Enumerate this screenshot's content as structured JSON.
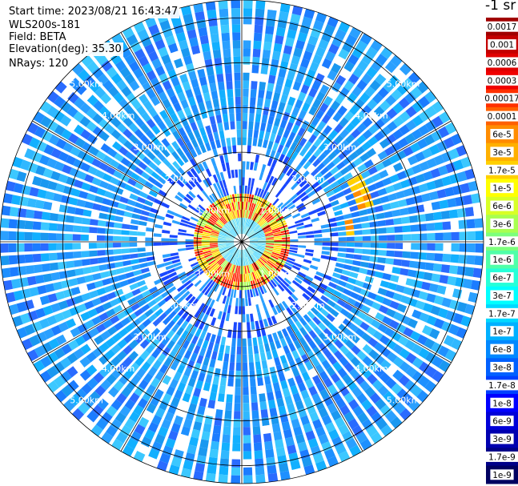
{
  "header": {
    "start_time": "Start time: 2023/08/21 16:43:47",
    "instrument": "WLS200s-181",
    "field": "Field: BETA",
    "elevation": "Elevation(deg): 35.30",
    "nrays": "NRays: 120"
  },
  "colorbar": {
    "units": "-1 sr",
    "labels": [
      "0.0017",
      "0.001",
      "0.0006",
      "0.0003",
      "0.00017",
      "0.0001",
      "6e-5",
      "3e-5",
      "1.7e-5",
      "1e-5",
      "6e-6",
      "3e-6",
      "1.7e-6",
      "1e-6",
      "6e-7",
      "3e-7",
      "1.7e-7",
      "1e-7",
      "6e-8",
      "3e-8",
      "1.7e-8",
      "1e-8",
      "6e-9",
      "3e-9",
      "1.7e-9",
      "1e-9"
    ],
    "colors": [
      "#a00000",
      "#c40000",
      "#e00000",
      "#f00000",
      "#ff3000",
      "#ff6000",
      "#ff8c00",
      "#ffb000",
      "#ffd000",
      "#ffff00",
      "#d8ff26",
      "#a8ff50",
      "#7cff7c",
      "#50ffa8",
      "#26ffd8",
      "#00ffff",
      "#00d8ff",
      "#00b0ff",
      "#0088ff",
      "#0060ff",
      "#0040ff",
      "#0000ff",
      "#0000d8",
      "#0000b0",
      "#000088",
      "#000060"
    ]
  },
  "chart_data": {
    "type": "heatmap",
    "subtype": "polar-ppi",
    "field": "BETA",
    "nrays": 120,
    "max_range_km": 5.4,
    "range_rings_km": [
      1.0,
      2.0,
      3.0,
      4.0,
      5.0
    ],
    "ring_labels": [
      "1.00km",
      "2.00km",
      "3.00km",
      "4.00km",
      "5.00km"
    ],
    "background_level": "1e-8 to 1e-7",
    "features": [
      {
        "name": "near-range ring",
        "range_km": [
          0.6,
          1.0
        ],
        "value": "1e-5 to 3e-5"
      },
      {
        "name": "ENE echo",
        "azimuth_deg": [
          60,
          75
        ],
        "range_km": [
          2.7,
          3.1
        ],
        "value": "1e-5"
      },
      {
        "name": "E echo",
        "azimuth_deg": [
          78,
          86
        ],
        "range_km": [
          2.3,
          2.6
        ],
        "value": "1e-5"
      }
    ]
  }
}
